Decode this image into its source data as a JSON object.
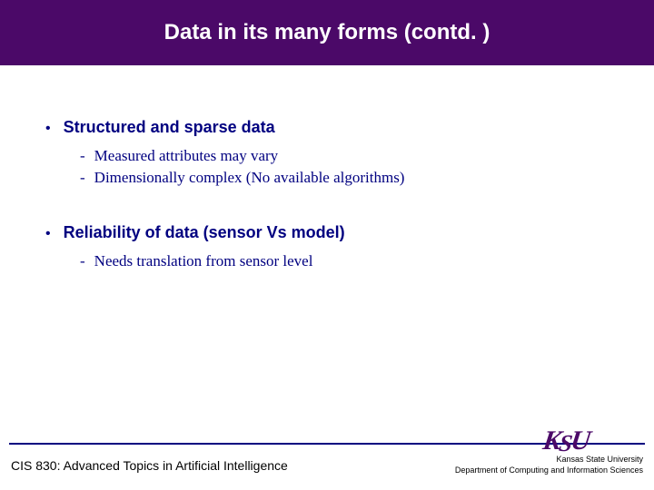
{
  "title": "Data in its many forms (contd. )",
  "sections": [
    {
      "heading": "Structured and sparse data",
      "items": [
        "Measured attributes may vary",
        " Dimensionally complex (No available algorithms)"
      ]
    },
    {
      "heading": "Reliability of data (sensor Vs model)",
      "items": [
        "Needs translation from sensor level"
      ]
    }
  ],
  "footer": {
    "course": "CIS 830: Advanced Topics in Artificial Intelligence",
    "university": "Kansas State University",
    "department": "Department of Computing and Information Sciences"
  },
  "colors": {
    "title_bg": "#4b0968",
    "title_fg": "#ffffff",
    "body_text": "#000080",
    "footer_line": "#000080",
    "logo": "#4b0968"
  }
}
